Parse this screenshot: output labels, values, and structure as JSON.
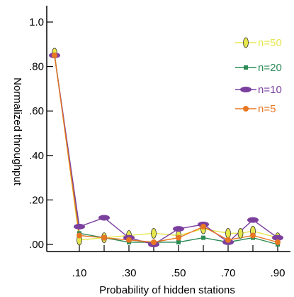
{
  "chart_data": {
    "type": "line",
    "xlabel": "Probability of hidden stations",
    "ylabel": "Normalized throughput",
    "x_ticks": [
      ".10",
      ".30",
      ".50",
      ".70",
      ".90"
    ],
    "y_ticks": [
      ".00",
      ".20",
      ".40",
      ".60",
      ".80",
      "1.0"
    ],
    "xlim": [
      0.0,
      0.98
    ],
    "ylim": [
      -0.02,
      1.08
    ],
    "grid": false,
    "legend": "right",
    "series": [
      {
        "name": "n=50",
        "color": "#e6e64d",
        "marker": "diamond",
        "x": [
          0.0,
          0.1,
          0.2,
          0.3,
          0.4,
          0.5,
          0.6,
          0.7,
          0.75,
          0.8,
          0.9
        ],
        "y": [
          0.86,
          0.02,
          0.03,
          0.04,
          0.05,
          0.04,
          0.07,
          0.05,
          0.05,
          0.06,
          0.03
        ]
      },
      {
        "name": "n=20",
        "color": "#2e8b57",
        "marker": "square",
        "x": [
          0.0,
          0.1,
          0.2,
          0.3,
          0.4,
          0.5,
          0.6,
          0.7,
          0.8,
          0.9
        ],
        "y": [
          0.85,
          0.05,
          0.03,
          0.01,
          0.01,
          0.01,
          0.03,
          0.01,
          0.03,
          0.0
        ]
      },
      {
        "name": "n=10",
        "color": "#7b3f9e",
        "marker": "ellipse",
        "x": [
          0.0,
          0.1,
          0.2,
          0.3,
          0.4,
          0.5,
          0.6,
          0.7,
          0.8,
          0.9
        ],
        "y": [
          0.85,
          0.08,
          0.12,
          0.03,
          0.0,
          0.07,
          0.09,
          0.01,
          0.11,
          0.03
        ]
      },
      {
        "name": "n=5",
        "color": "#e87722",
        "marker": "circle",
        "x": [
          0.0,
          0.1,
          0.2,
          0.3,
          0.4,
          0.5,
          0.6,
          0.7,
          0.8,
          0.9
        ],
        "y": [
          0.85,
          0.04,
          0.03,
          0.02,
          0.01,
          0.03,
          0.08,
          0.02,
          0.04,
          0.01
        ]
      }
    ]
  }
}
